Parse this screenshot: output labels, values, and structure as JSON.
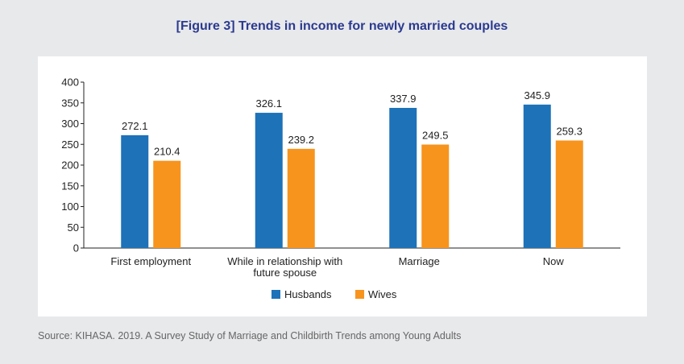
{
  "title": "[Figure 3] Trends in income for newly married couples",
  "source": "Source: KIHASA. 2019. A Survey Study of Marriage and Childbirth Trends among Young Adults",
  "chart_data": {
    "type": "bar",
    "categories": [
      [
        "First employment"
      ],
      [
        "While in relationship with",
        "future spouse"
      ],
      [
        "Marriage"
      ],
      [
        "Now"
      ]
    ],
    "series": [
      {
        "name": "Husbands",
        "color": "#1d72b8",
        "values": [
          272.1,
          326.1,
          337.9,
          345.9
        ]
      },
      {
        "name": "Wives",
        "color": "#f7941d",
        "values": [
          210.4,
          239.2,
          249.5,
          259.3
        ]
      }
    ],
    "ylim": [
      0,
      400
    ],
    "yticks": [
      0,
      50,
      100,
      150,
      200,
      250,
      300,
      350,
      400
    ],
    "legend": "bottom-center",
    "grid": false
  }
}
